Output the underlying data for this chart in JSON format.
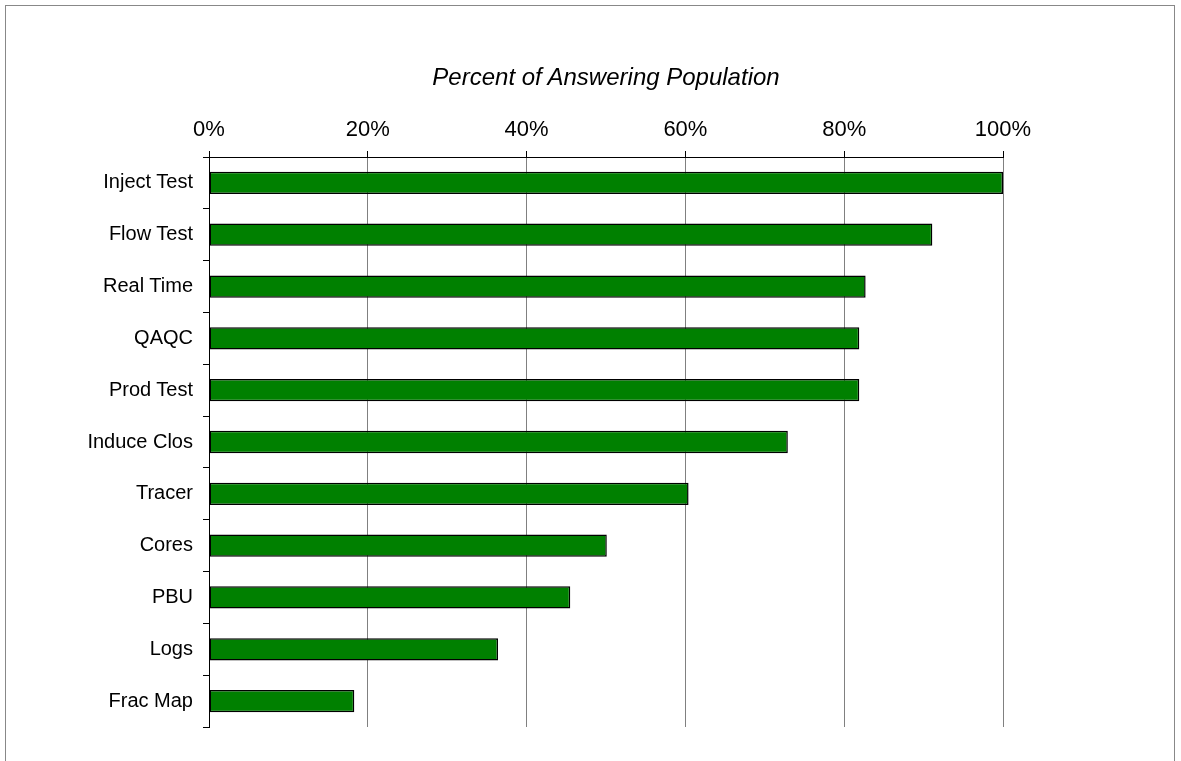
{
  "chart_data": {
    "type": "bar",
    "orientation": "horizontal",
    "xlabel": "Percent of Answering Population",
    "categories": [
      "Inject Test",
      "Flow Test",
      "Real Time",
      "QAQC",
      "Prod Test",
      "Induce Clos",
      "Tracer",
      "Cores",
      "PBU",
      "Logs",
      "Frac Map"
    ],
    "values": [
      100,
      91.1,
      82.7,
      81.9,
      81.9,
      72.9,
      60.4,
      50.1,
      45.5,
      36.4,
      18.3
    ],
    "color": "#008000",
    "xlim": [
      0,
      100
    ],
    "xticks": [
      {
        "value": 0,
        "label": "0%"
      },
      {
        "value": 20,
        "label": "20%"
      },
      {
        "value": 40,
        "label": "40%"
      },
      {
        "value": 60,
        "label": "60%"
      },
      {
        "value": 80,
        "label": "80%"
      },
      {
        "value": 100,
        "label": "100%"
      }
    ],
    "grid": "x",
    "legend": false
  }
}
